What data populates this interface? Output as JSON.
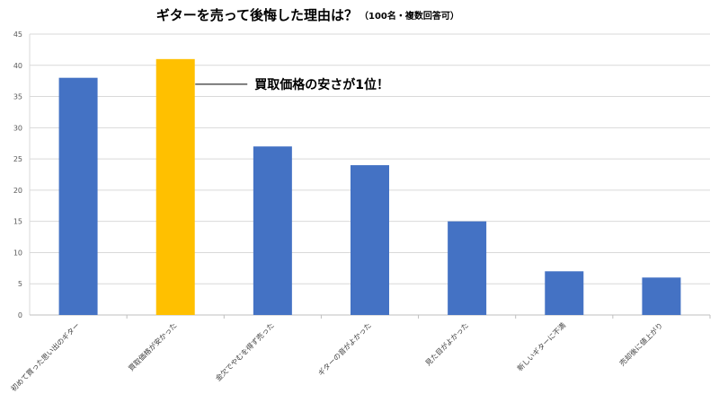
{
  "chart_data": {
    "type": "bar",
    "title": "ギターを売って後悔した理由は？",
    "subtitle": "（100名・複数回答可）",
    "categories": [
      "初めて買った思い出のギター",
      "買取価格が安かった",
      "金欠でやむを得ず売った",
      "ギターの音がよかった",
      "見た目がよかった",
      "新しいギターに不満",
      "売却後に値上がり"
    ],
    "values": [
      38,
      41,
      27,
      24,
      15,
      7,
      6
    ],
    "colors": [
      "#4472C4",
      "#FFC000",
      "#4472C4",
      "#4472C4",
      "#4472C4",
      "#4472C4",
      "#4472C4"
    ],
    "ylim": [
      0,
      45
    ],
    "yticks": [
      0,
      5,
      10,
      15,
      20,
      25,
      30,
      35,
      40,
      45
    ],
    "grid": true,
    "annotation": {
      "text": "買取価格の安さが1位！",
      "category_index": 1
    }
  }
}
